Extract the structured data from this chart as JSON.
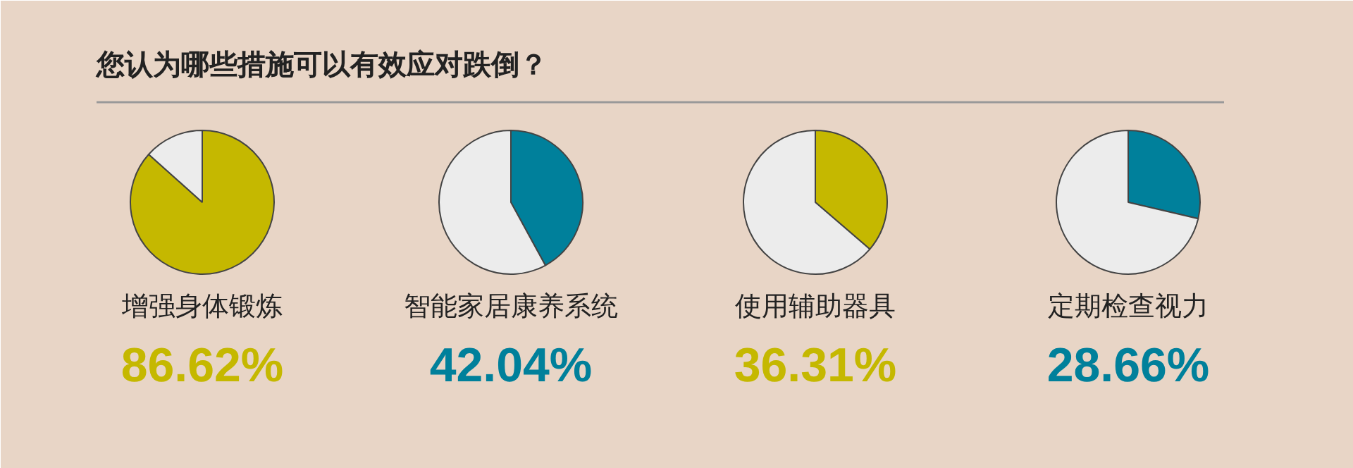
{
  "chart_data": [
    {
      "type": "other",
      "title": "您认为哪些措施可以有效应对跌倒？"
    },
    {
      "type": "pie",
      "title": "增强身体锻炼",
      "categories": [
        null,
        null
      ],
      "values": [
        86.62,
        13.38
      ],
      "colors": [
        "#c5b800",
        "#ececec"
      ],
      "annotations": [
        "86.62%"
      ]
    },
    {
      "type": "pie",
      "title": "智能家居康养系统",
      "categories": [
        null,
        null
      ],
      "values": [
        42.04,
        57.96
      ],
      "colors": [
        "#00809b",
        "#ececec"
      ],
      "annotations": [
        "42.04%"
      ]
    },
    {
      "type": "pie",
      "title": "使用辅助器具",
      "categories": [
        null,
        null
      ],
      "values": [
        36.31,
        63.69
      ],
      "colors": [
        "#c5b800",
        "#ececec"
      ],
      "annotations": [
        "36.31%"
      ]
    },
    {
      "type": "pie",
      "title": "定期检查视力",
      "categories": [
        null,
        null
      ],
      "values": [
        28.66,
        71.34
      ],
      "colors": [
        "#00809b",
        "#ececec"
      ],
      "annotations": [
        "28.66%"
      ]
    }
  ]
}
